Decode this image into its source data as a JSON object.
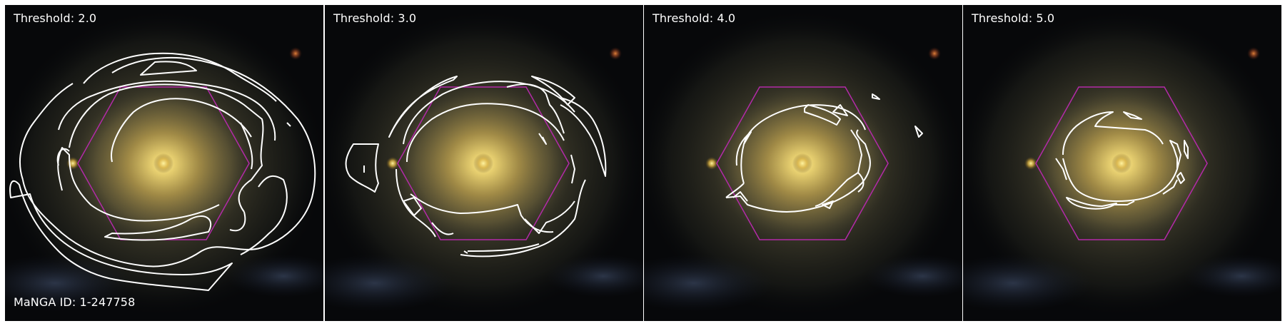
{
  "panels": [
    {
      "label": "Threshold: 2.0"
    },
    {
      "label": "Threshold: 3.0"
    },
    {
      "label": "Threshold: 4.0"
    },
    {
      "label": "Threshold: 5.0"
    }
  ],
  "manga_id_label": "MaNGA ID: 1-247758",
  "colors": {
    "contour": "#ffffff",
    "hexagon": "#b32aa8",
    "galaxy_core": "#fff3a0",
    "background": "#07080a"
  }
}
